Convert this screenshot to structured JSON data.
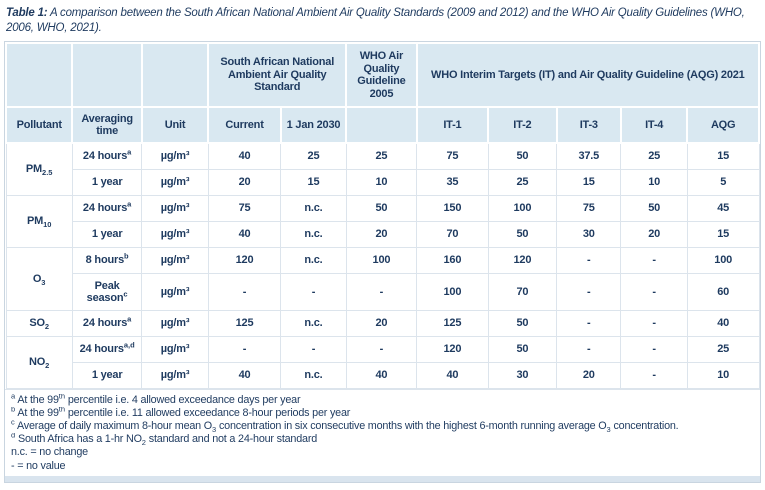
{
  "title": {
    "label": "Table 1:",
    "text": "A comparison between the South African National Ambient Air Quality Standards (2009 and 2012) and the WHO Air Quality Guidelines (WHO, 2006, WHO, 2021)."
  },
  "colors": {
    "text_navy": "#1e3a5f",
    "header_fill": "#d9e8f1",
    "grid_line": "#dce4ec",
    "frame_border": "#c9d5e0",
    "footer_strip": "#d9e4ee"
  },
  "table": {
    "groups": {
      "sa_standard": "South African National Ambient Air Quality Standard",
      "who_2005": "WHO Air Quality Guideline 2005",
      "who_2021": "WHO Interim Targets (IT) and Air Quality Guideline (AQG) 2021"
    },
    "columns": [
      "Pollutant",
      "Averaging time",
      "Unit",
      "Current",
      "1 Jan 2030",
      "",
      "IT-1",
      "IT-2",
      "IT-3",
      "IT-4",
      "AQG"
    ],
    "body": [
      {
        "pollutant": [
          {
            "t": "PM"
          },
          {
            "sub": "2.5"
          }
        ],
        "rows": [
          {
            "avg": [
              {
                "t": "24 hours"
              },
              {
                "sup": "a"
              }
            ],
            "unit": "µg/m³",
            "values": [
              "40",
              "25",
              "25",
              "75",
              "50",
              "37.5",
              "25",
              "15"
            ]
          },
          {
            "avg": [
              {
                "t": "1 year"
              }
            ],
            "unit": "µg/m³",
            "values": [
              "20",
              "15",
              "10",
              "35",
              "25",
              "15",
              "10",
              "5"
            ]
          }
        ]
      },
      {
        "pollutant": [
          {
            "t": "PM"
          },
          {
            "sub": "10"
          }
        ],
        "rows": [
          {
            "avg": [
              {
                "t": "24 hours"
              },
              {
                "sup": "a"
              }
            ],
            "unit": "µg/m³",
            "values": [
              "75",
              "n.c.",
              "50",
              "150",
              "100",
              "75",
              "50",
              "45"
            ]
          },
          {
            "avg": [
              {
                "t": "1 year"
              }
            ],
            "unit": "µg/m³",
            "values": [
              "40",
              "n.c.",
              "20",
              "70",
              "50",
              "30",
              "20",
              "15"
            ]
          }
        ]
      },
      {
        "pollutant": [
          {
            "t": "O"
          },
          {
            "sub": "3"
          }
        ],
        "rows": [
          {
            "avg": [
              {
                "t": "8 hours"
              },
              {
                "sup": "b"
              }
            ],
            "unit": "µg/m³",
            "values": [
              "120",
              "n.c.",
              "100",
              "160",
              "120",
              "-",
              "-",
              "100"
            ]
          },
          {
            "avg": [
              {
                "t": "Peak season"
              },
              {
                "sup": "c"
              }
            ],
            "unit": "µg/m³",
            "tall": true,
            "values": [
              "-",
              "-",
              "-",
              "100",
              "70",
              "-",
              "-",
              "60"
            ]
          }
        ]
      },
      {
        "pollutant": [
          {
            "t": "SO"
          },
          {
            "sub": "2"
          }
        ],
        "rows": [
          {
            "avg": [
              {
                "t": "24 hours"
              },
              {
                "sup": "a"
              }
            ],
            "unit": "µg/m³",
            "values": [
              "125",
              "n.c.",
              "20",
              "125",
              "50",
              "-",
              "-",
              "40"
            ]
          }
        ]
      },
      {
        "pollutant": [
          {
            "t": "NO"
          },
          {
            "sub": "2"
          }
        ],
        "rows": [
          {
            "avg": [
              {
                "t": "24 hours"
              },
              {
                "sup": "a,d"
              }
            ],
            "unit": "µg/m³",
            "values": [
              "-",
              "-",
              "-",
              "120",
              "50",
              "-",
              "-",
              "25"
            ]
          },
          {
            "avg": [
              {
                "t": "1 year"
              }
            ],
            "unit": "µg/m³",
            "values": [
              "40",
              "n.c.",
              "40",
              "40",
              "30",
              "20",
              "-",
              "10"
            ]
          }
        ]
      }
    ]
  },
  "footnotes": [
    [
      {
        "sup": "a"
      },
      {
        "t": " At the 99"
      },
      {
        "sup": "th"
      },
      {
        "t": " percentile i.e. 4 allowed exceedance days per year"
      }
    ],
    [
      {
        "sup": "b"
      },
      {
        "t": " At the 99"
      },
      {
        "sup": "th"
      },
      {
        "t": " percentile i.e. 11 allowed exceedance 8-hour periods per year"
      }
    ],
    [
      {
        "sup": "c"
      },
      {
        "t": " Average of daily maximum 8-hour mean O"
      },
      {
        "sub": "3"
      },
      {
        "t": " concentration in six consecutive months with the highest 6-month running average O"
      },
      {
        "sub": "3"
      },
      {
        "t": " concentration."
      }
    ],
    [
      {
        "sup": "d"
      },
      {
        "t": " South Africa has a 1-hr NO"
      },
      {
        "sub": "2"
      },
      {
        "t": " standard and not a 24-hour standard"
      }
    ],
    [
      {
        "t": "n.c. = no change"
      }
    ],
    [
      {
        "t": "- = no value"
      }
    ]
  ]
}
